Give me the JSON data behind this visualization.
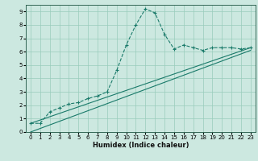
{
  "xlabel": "Humidex (Indice chaleur)",
  "ylabel": "",
  "bg_color": "#cce8e0",
  "line_color": "#1a7a6a",
  "grid_color": "#99ccbb",
  "xlim": [
    -0.5,
    23.5
  ],
  "ylim": [
    0,
    9.5
  ],
  "xticks": [
    0,
    1,
    2,
    3,
    4,
    5,
    6,
    7,
    8,
    9,
    10,
    11,
    12,
    13,
    14,
    15,
    16,
    17,
    18,
    19,
    20,
    21,
    22,
    23
  ],
  "yticks": [
    0,
    1,
    2,
    3,
    4,
    5,
    6,
    7,
    8,
    9
  ],
  "curve1_x": [
    0,
    1,
    2,
    3,
    4,
    5,
    6,
    7,
    8,
    9,
    10,
    11,
    12,
    13,
    14,
    15,
    16,
    17,
    18,
    19,
    20,
    21,
    22,
    23
  ],
  "curve1_y": [
    0.65,
    0.65,
    1.5,
    1.8,
    2.1,
    2.2,
    2.5,
    2.7,
    3.0,
    4.6,
    6.5,
    8.0,
    9.2,
    8.9,
    7.3,
    6.2,
    6.5,
    6.3,
    6.1,
    6.3,
    6.3,
    6.3,
    6.2,
    6.3
  ],
  "curve2_x": [
    0,
    23
  ],
  "curve2_y": [
    0.65,
    6.3
  ],
  "curve3_x": [
    0,
    23
  ],
  "curve3_y": [
    0.0,
    6.1
  ]
}
